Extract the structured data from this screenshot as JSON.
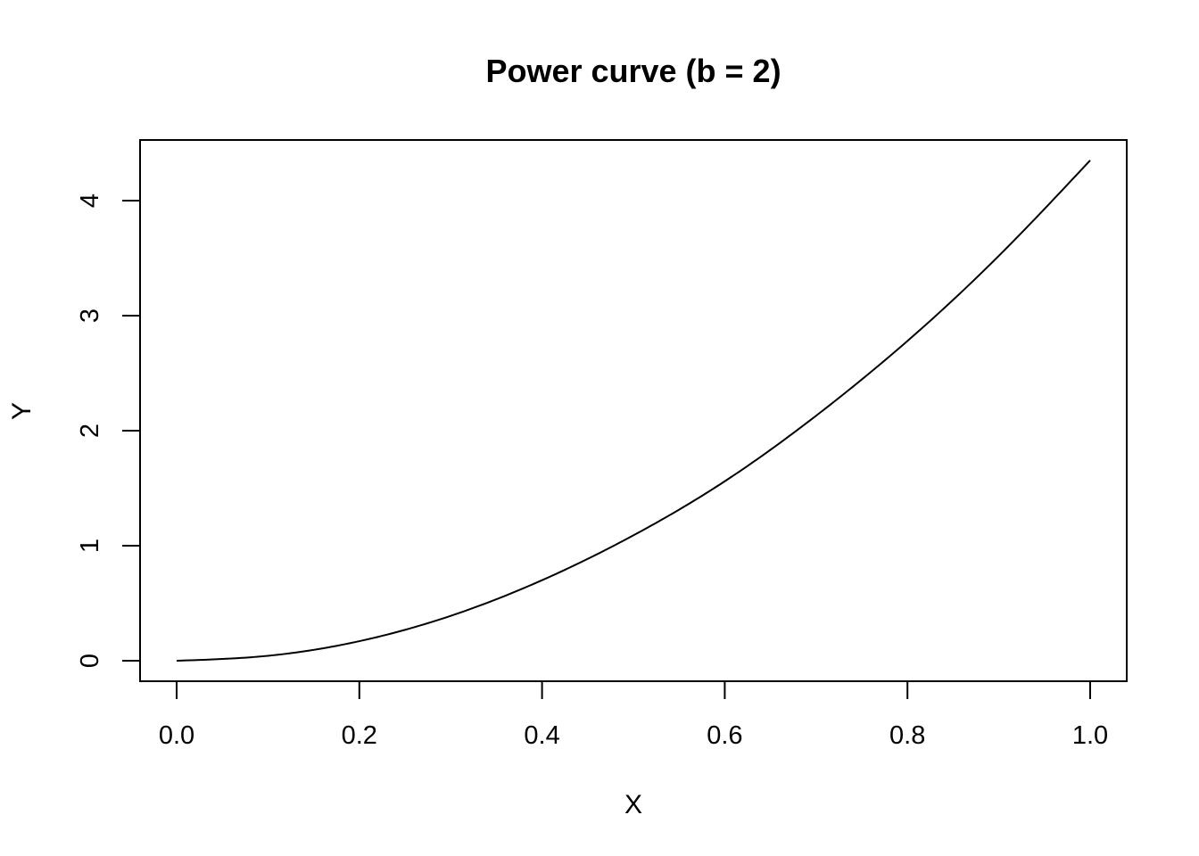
{
  "chart_data": {
    "type": "line",
    "title": "Power curve (b = 2)",
    "xlabel": "X",
    "ylabel": "Y",
    "xlim": [
      0.0,
      1.0
    ],
    "ylim": [
      0,
      4.35
    ],
    "x_ticks": [
      "0.0",
      "0.2",
      "0.4",
      "0.6",
      "0.8",
      "1.0"
    ],
    "y_ticks": [
      "0",
      "1",
      "2",
      "3",
      "4"
    ],
    "grid": false,
    "legend": "none",
    "series": [
      {
        "color": "#000000",
        "x": [
          0.0,
          0.1,
          0.2,
          0.3,
          0.4,
          0.5,
          0.6,
          0.7,
          0.8,
          0.9,
          1.0
        ],
        "y": [
          0.0,
          0.043,
          0.17,
          0.39,
          0.7,
          1.09,
          1.56,
          2.13,
          2.78,
          3.52,
          4.35
        ]
      }
    ]
  }
}
